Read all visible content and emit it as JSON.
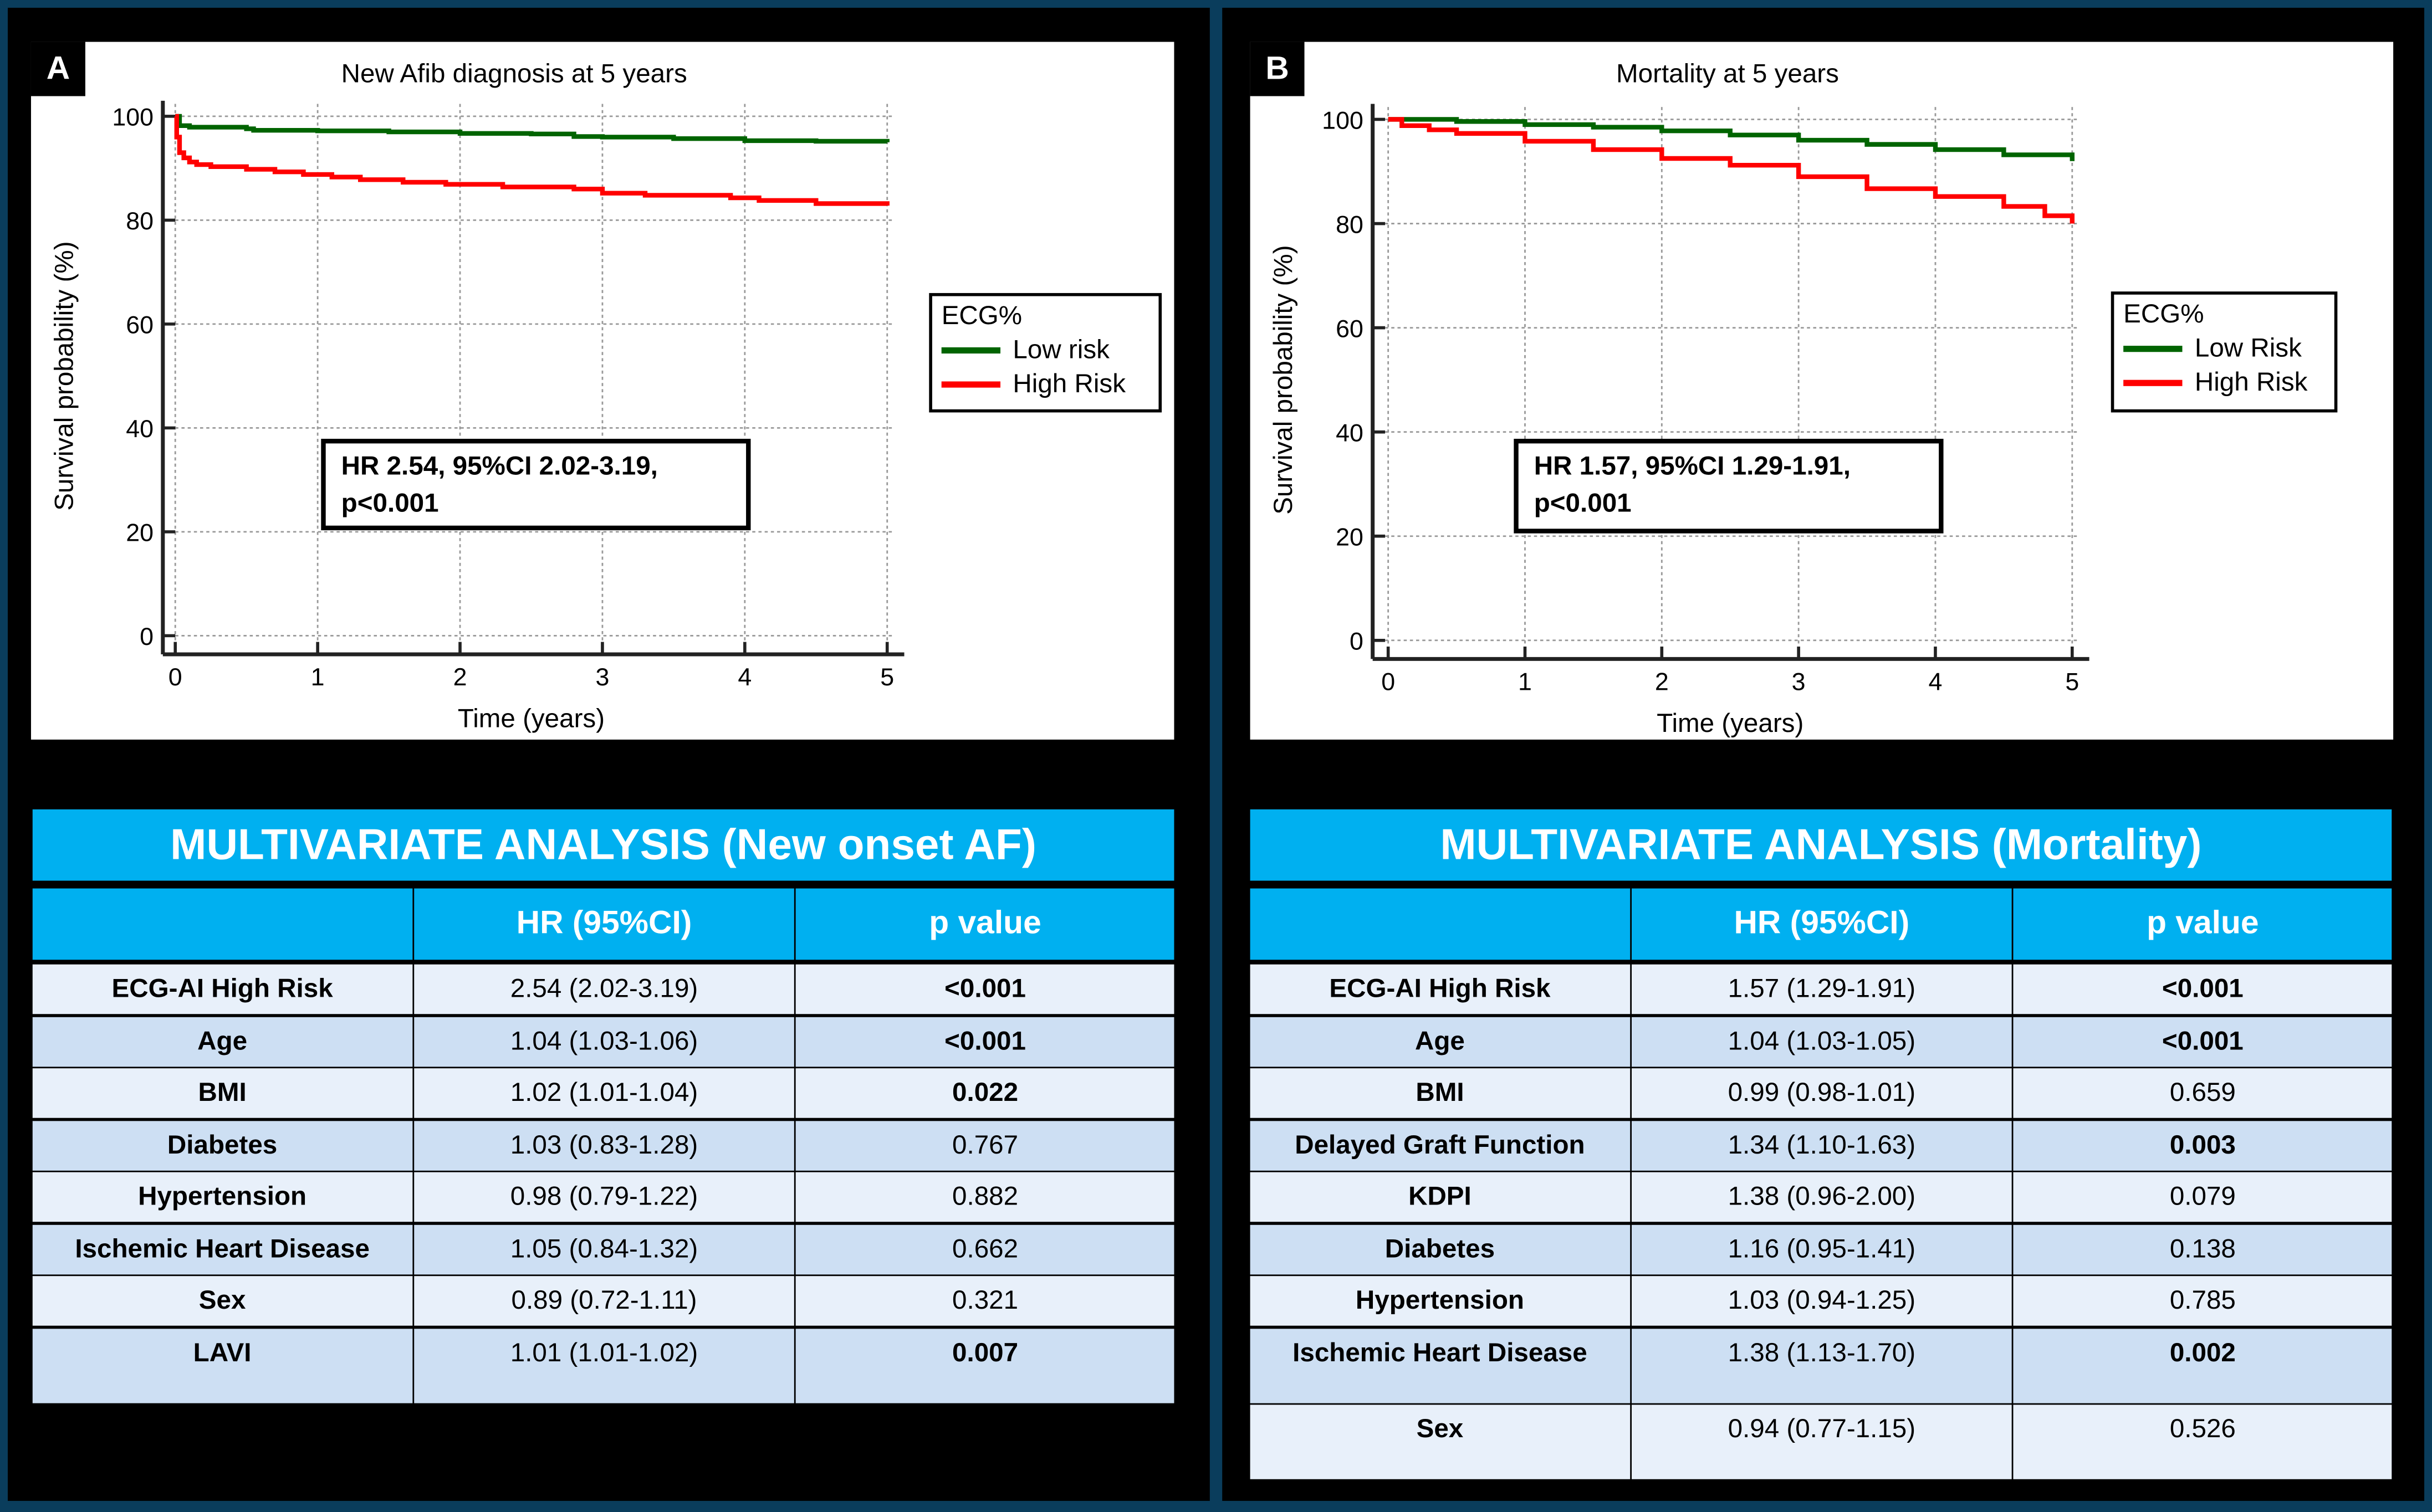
{
  "panels": [
    {
      "letter": "A",
      "chart_data": {
        "type": "line",
        "title": "New Afib diagnosis at 5 years",
        "xlabel": "Time (years)",
        "ylabel": "Survival probability (%)",
        "xlim": [
          0,
          5
        ],
        "ylim": [
          0,
          100
        ],
        "xticks": [
          0,
          1,
          2,
          3,
          4,
          5
        ],
        "yticks": [
          0,
          20,
          40,
          60,
          80,
          100
        ],
        "grid": true,
        "legend_placement": "right",
        "legend_title": "ECG%",
        "series": [
          {
            "name": "Low risk",
            "color": "#006400",
            "x": [
              0,
              0.03,
              0.1,
              0.5,
              0.55,
              1.0,
              1.5,
              2.0,
              2.5,
              2.8,
              3.0,
              3.5,
              4.0,
              4.5,
              5.0
            ],
            "y": [
              100,
              98.2,
              97.9,
              97.6,
              97.3,
              97.2,
              97.0,
              96.7,
              96.6,
              96.1,
              96.0,
              95.7,
              95.3,
              95.2,
              95.0
            ]
          },
          {
            "name": "High Risk",
            "color": "#ff0000",
            "x": [
              0,
              0.01,
              0.03,
              0.06,
              0.1,
              0.15,
              0.25,
              0.5,
              0.7,
              0.9,
              1.1,
              1.3,
              1.6,
              1.9,
              2.3,
              2.8,
              3.0,
              3.3,
              3.9,
              4.1,
              4.5,
              5.0
            ],
            "y": [
              100,
              96,
              93,
              92,
              91.2,
              90.7,
              90.3,
              89.8,
              89.3,
              88.8,
              88.3,
              87.8,
              87.3,
              86.9,
              86.4,
              86.0,
              85.2,
              84.8,
              84.3,
              83.8,
              83.2,
              82.8
            ]
          }
        ],
        "annotation": [
          "HR 2.54, 95%CI 2.02-3.19,",
          "p<0.001"
        ]
      },
      "table": {
        "title": "MULTIVARIATE ANALYSIS (New onset AF)",
        "headers": [
          "",
          "HR (95%CI)",
          "p value"
        ],
        "rows": [
          {
            "var": "ECG-AI High Risk",
            "hr": "2.54 (2.02-3.19)",
            "p": "<0.001",
            "bold": true
          },
          {
            "var": "Age",
            "hr": "1.04 (1.03-1.06)",
            "p": "<0.001",
            "bold": true
          },
          {
            "var": "BMI",
            "hr": "1.02 (1.01-1.04)",
            "p": "0.022",
            "bold": true
          },
          {
            "var": "Diabetes",
            "hr": "1.03 (0.83-1.28)",
            "p": "0.767",
            "bold": false
          },
          {
            "var": "Hypertension",
            "hr": "0.98 (0.79-1.22)",
            "p": "0.882",
            "bold": false
          },
          {
            "var": "Ischemic Heart Disease",
            "hr": "1.05 (0.84-1.32)",
            "p": "0.662",
            "bold": false
          },
          {
            "var": "Sex",
            "hr": "0.89 (0.72-1.11)",
            "p": "0.321",
            "bold": false
          },
          {
            "var": "LAVI",
            "hr": "1.01 (1.01-1.02)",
            "p": "0.007",
            "bold": true
          }
        ]
      }
    },
    {
      "letter": "B",
      "chart_data": {
        "type": "line",
        "title": "Mortality at 5 years",
        "xlabel": "Time (years)",
        "ylabel": "Survival probability (%)",
        "xlim": [
          0,
          5
        ],
        "ylim": [
          0,
          100
        ],
        "xticks": [
          0,
          1,
          2,
          3,
          4,
          5
        ],
        "yticks": [
          0,
          20,
          40,
          60,
          80,
          100
        ],
        "grid": true,
        "legend_placement": "right",
        "legend_title": "ECG%",
        "series": [
          {
            "name": "Low Risk",
            "color": "#006400",
            "x": [
              0,
              0.5,
              1.0,
              1.5,
              2.0,
              2.5,
              3.0,
              3.5,
              4.0,
              4.5,
              5.0
            ],
            "y": [
              100,
              99.6,
              99.0,
              98.5,
              97.8,
              97.0,
              96.0,
              95.2,
              94.2,
              93.2,
              92.0
            ]
          },
          {
            "name": "High Risk",
            "color": "#ff0000",
            "x": [
              0,
              0.1,
              0.3,
              0.5,
              1.0,
              1.5,
              2.0,
              2.5,
              3.0,
              3.5,
              4.0,
              4.5,
              4.8,
              5.0
            ],
            "y": [
              100,
              98.8,
              98,
              97.3,
              95.8,
              94.2,
              92.5,
              91.2,
              89.0,
              86.7,
              85.2,
              83.3,
              81.5,
              80.0
            ]
          }
        ],
        "annotation": [
          "HR 1.57, 95%CI 1.29-1.91,",
          "p<0.001"
        ]
      },
      "table": {
        "title": "MULTIVARIATE ANALYSIS (Mortality)",
        "headers": [
          "",
          "HR (95%CI)",
          "p value"
        ],
        "rows": [
          {
            "var": "ECG-AI High Risk",
            "hr": "1.57 (1.29-1.91)",
            "p": "<0.001",
            "bold": true
          },
          {
            "var": "Age",
            "hr": "1.04 (1.03-1.05)",
            "p": "<0.001",
            "bold": true
          },
          {
            "var": "BMI",
            "hr": "0.99 (0.98-1.01)",
            "p": "0.659",
            "bold": false
          },
          {
            "var": "Delayed Graft Function",
            "hr": "1.34 (1.10-1.63)",
            "p": "0.003",
            "bold": true
          },
          {
            "var": "KDPI",
            "hr": "1.38 (0.96-2.00)",
            "p": "0.079",
            "bold": false
          },
          {
            "var": "Diabetes",
            "hr": "1.16 (0.95-1.41)",
            "p": "0.138",
            "bold": false
          },
          {
            "var": "Hypertension",
            "hr": "1.03 (0.94-1.25)",
            "p": "0.785",
            "bold": false
          },
          {
            "var": "Ischemic Heart Disease",
            "hr": "1.38 (1.13-1.70)",
            "p": "0.002",
            "bold": true
          },
          {
            "var": "Sex",
            "hr": "0.94 (0.77-1.15)",
            "p": "0.526",
            "bold": false
          }
        ]
      }
    }
  ],
  "colors": {
    "header": "#00b0f0",
    "row_light": "#e8f0fa",
    "row_dark": "#cddff3"
  }
}
